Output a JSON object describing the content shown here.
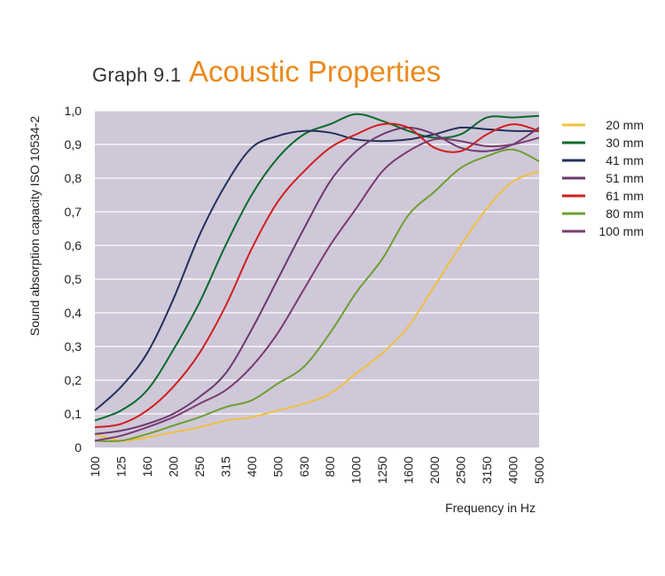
{
  "title": {
    "prefix": "Graph 9.1",
    "main": "Acoustic Properties"
  },
  "colors": {
    "title_accent": "#e98a1c",
    "plot_background": "#cfc8d9",
    "grid": "#ffffff"
  },
  "chart_data": {
    "type": "line",
    "title": "Graph 9.1 Acoustic Properties",
    "xlabel": "Frequency in Hz",
    "ylabel": "Sound absorption capacity ISO 10534-2",
    "x_scale": "log",
    "ylim": [
      0,
      1.0
    ],
    "grid": "horizontal",
    "legend_position": "right",
    "x": [
      100,
      125,
      160,
      200,
      250,
      315,
      400,
      500,
      630,
      800,
      1000,
      1250,
      1600,
      2000,
      2500,
      3150,
      4000,
      5000
    ],
    "x_tick_labels": [
      "100",
      "125",
      "160",
      "200",
      "250",
      "315",
      "400",
      "500",
      "630",
      "800",
      "1000",
      "1250",
      "1600",
      "2000",
      "2500",
      "3150",
      "4000",
      "5000"
    ],
    "y_tick_labels": [
      "0",
      "0,1",
      "0,2",
      "0,3",
      "0,4",
      "0,5",
      "0,6",
      "0,7",
      "0,8",
      "0,9",
      "1,0"
    ],
    "series": [
      {
        "name": "20 mm",
        "color": "#f0c040",
        "values": [
          0.04,
          0.02,
          0.03,
          0.045,
          0.06,
          0.08,
          0.09,
          0.11,
          0.13,
          0.16,
          0.22,
          0.28,
          0.36,
          0.48,
          0.6,
          0.71,
          0.79,
          0.82
        ]
      },
      {
        "name": "30 mm",
        "color": "#0d6b2c",
        "values": [
          0.08,
          0.11,
          0.17,
          0.29,
          0.43,
          0.6,
          0.75,
          0.86,
          0.93,
          0.96,
          0.99,
          0.97,
          0.94,
          0.92,
          0.93,
          0.98,
          0.98,
          0.985
        ]
      },
      {
        "name": "41 mm",
        "color": "#24305a",
        "values": [
          0.11,
          0.18,
          0.28,
          0.44,
          0.63,
          0.78,
          0.89,
          0.925,
          0.94,
          0.935,
          0.915,
          0.91,
          0.915,
          0.93,
          0.95,
          0.945,
          0.94,
          0.94
        ]
      },
      {
        "name": "51 mm",
        "color": "#6b3a6e",
        "values": [
          0.04,
          0.05,
          0.07,
          0.1,
          0.15,
          0.22,
          0.35,
          0.5,
          0.65,
          0.79,
          0.88,
          0.93,
          0.95,
          0.93,
          0.89,
          0.88,
          0.9,
          0.95
        ]
      },
      {
        "name": "61 mm",
        "color": "#d11f1f",
        "values": [
          0.06,
          0.07,
          0.11,
          0.18,
          0.28,
          0.42,
          0.59,
          0.73,
          0.82,
          0.89,
          0.93,
          0.96,
          0.95,
          0.89,
          0.88,
          0.93,
          0.96,
          0.94
        ]
      },
      {
        "name": "80 mm",
        "color": "#6e9e2f",
        "values": [
          0.02,
          0.02,
          0.04,
          0.065,
          0.09,
          0.12,
          0.14,
          0.19,
          0.24,
          0.34,
          0.46,
          0.56,
          0.69,
          0.76,
          0.83,
          0.865,
          0.885,
          0.85
        ]
      },
      {
        "name": "100 mm",
        "color": "#7a3b72",
        "values": [
          0.02,
          0.035,
          0.06,
          0.09,
          0.13,
          0.17,
          0.24,
          0.34,
          0.47,
          0.6,
          0.71,
          0.82,
          0.88,
          0.915,
          0.91,
          0.895,
          0.9,
          0.92
        ]
      }
    ]
  }
}
